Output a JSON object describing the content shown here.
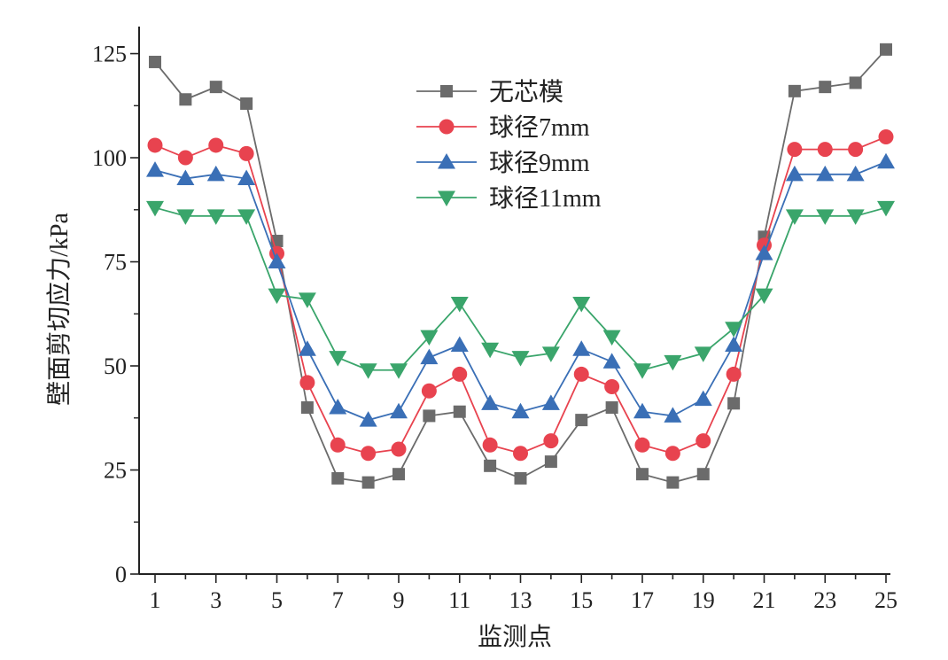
{
  "chart_data": {
    "type": "line",
    "xlabel": "监测点",
    "ylabel": "壁面剪切应力/kPa",
    "xlim": [
      1,
      25
    ],
    "ylim": [
      0,
      125
    ],
    "xticks": [
      1,
      3,
      5,
      7,
      9,
      11,
      13,
      15,
      17,
      19,
      21,
      23,
      25
    ],
    "yticks": [
      0,
      25,
      50,
      75,
      100,
      125
    ],
    "grid": false,
    "legend_position": "upper-center",
    "x": [
      1,
      2,
      3,
      4,
      5,
      6,
      7,
      8,
      9,
      10,
      11,
      12,
      13,
      14,
      15,
      16,
      17,
      18,
      19,
      20,
      21,
      22,
      23,
      24,
      25
    ],
    "series": [
      {
        "name": "无芯模",
        "color": "#6b6b6b",
        "marker": "square",
        "values": [
          123,
          114,
          117,
          113,
          80,
          40,
          23,
          22,
          24,
          38,
          39,
          26,
          23,
          27,
          37,
          40,
          24,
          22,
          24,
          41,
          81,
          116,
          117,
          118,
          126
        ]
      },
      {
        "name": "球径7mm",
        "color": "#e8434f",
        "marker": "circle",
        "values": [
          103,
          100,
          103,
          101,
          77,
          46,
          31,
          29,
          30,
          44,
          48,
          31,
          29,
          32,
          48,
          45,
          31,
          29,
          32,
          48,
          79,
          102,
          102,
          102,
          105
        ]
      },
      {
        "name": "球径9mm",
        "color": "#3a6fb6",
        "marker": "triangle-up",
        "values": [
          97,
          95,
          96,
          95,
          75,
          54,
          40,
          37,
          39,
          52,
          55,
          41,
          39,
          41,
          54,
          51,
          39,
          38,
          42,
          55,
          77,
          96,
          96,
          96,
          99
        ]
      },
      {
        "name": "球径11mm",
        "color": "#3aa56b",
        "marker": "triangle-down",
        "values": [
          88,
          86,
          86,
          86,
          67,
          66,
          52,
          49,
          49,
          57,
          65,
          54,
          52,
          53,
          65,
          57,
          49,
          51,
          53,
          59,
          67,
          86,
          86,
          86,
          88
        ]
      }
    ]
  }
}
